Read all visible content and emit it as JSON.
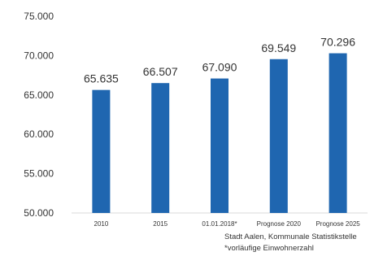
{
  "chart_data": {
    "type": "bar",
    "title": "",
    "xlabel": "",
    "ylabel": "",
    "categories": [
      "2010",
      "2015",
      "01.01.2018*",
      "Prognose 2020",
      "Prognose 2025"
    ],
    "values": [
      65635,
      66507,
      67090,
      69549,
      70296
    ],
    "value_labels": [
      "65.635",
      "66.507",
      "67.090",
      "69.549",
      "70.296"
    ],
    "ylim": [
      50000,
      75000
    ],
    "yticks": [
      50000,
      55000,
      60000,
      65000,
      70000,
      75000
    ],
    "ytick_labels": [
      "50.000",
      "55.000",
      "60.000",
      "65.000",
      "70.000",
      "75.000"
    ],
    "grid": false,
    "legend": "none",
    "bar_color": "#1f66b0"
  },
  "source": {
    "line1": "Stadt Aalen, Kommunale Statistikstelle",
    "line2": "*vorläufige Einwohnerzahl"
  }
}
